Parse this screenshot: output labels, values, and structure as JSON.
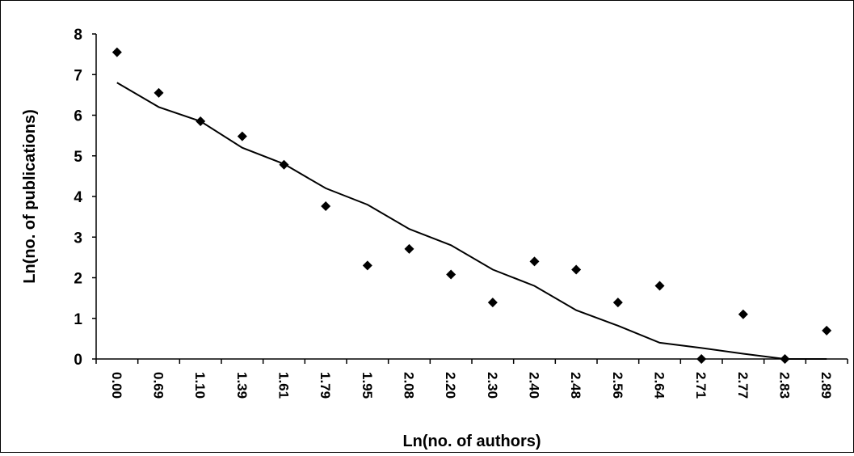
{
  "chart_data": {
    "type": "scatter",
    "xlabel": "Ln(no. of authors)",
    "ylabel": "Ln(no. of publications)",
    "categories": [
      "0.00",
      "0.69",
      "1.10",
      "1.39",
      "1.61",
      "1.79",
      "1.95",
      "2.08",
      "2.20",
      "2.30",
      "2.40",
      "2.48",
      "2.56",
      "2.64",
      "2.71",
      "2.77",
      "2.83",
      "2.89"
    ],
    "ylim": [
      0,
      8
    ],
    "yticks": [
      "0",
      "1",
      "2",
      "3",
      "4",
      "5",
      "6",
      "7",
      "8"
    ],
    "grid": false,
    "legend": "none",
    "series": [
      {
        "type": "scatter",
        "marker": "diamond",
        "color": "#000000",
        "values": [
          7.55,
          6.55,
          5.85,
          5.48,
          4.78,
          3.76,
          2.3,
          2.71,
          2.08,
          1.39,
          2.4,
          2.2,
          1.39,
          1.8,
          0.0,
          1.1,
          0.0,
          0.7
        ]
      },
      {
        "type": "line",
        "color": "#000000",
        "values": [
          6.8,
          6.2,
          5.85,
          5.2,
          4.8,
          4.2,
          3.8,
          3.2,
          2.8,
          2.2,
          1.8,
          1.2,
          0.82,
          0.4,
          0.27,
          0.13,
          0.0,
          0.0
        ]
      }
    ]
  }
}
